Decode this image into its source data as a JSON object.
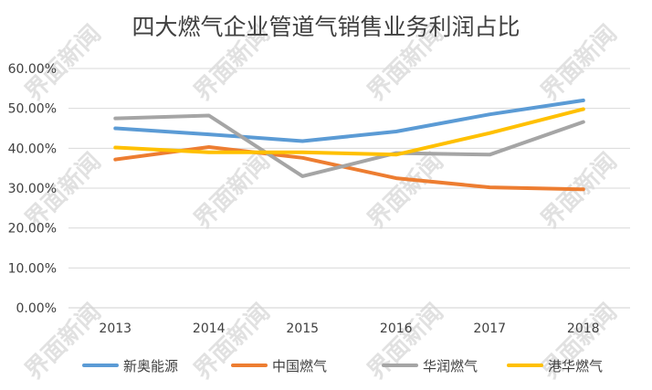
{
  "watermark_text": "界面新闻",
  "chart_data": {
    "type": "line",
    "title": "四大燃气企业管道气销售业务利润占比",
    "xlabel": "",
    "ylabel": "",
    "categories": [
      "2013",
      "2014",
      "2015",
      "2016",
      "2017",
      "2018"
    ],
    "ylim": [
      0,
      60
    ],
    "yticks": [
      "0.00%",
      "10.00%",
      "20.00%",
      "30.00%",
      "40.00%",
      "50.00%",
      "60.00%"
    ],
    "grid": true,
    "legend_position": "bottom",
    "series": [
      {
        "name": "新奥能源",
        "color": "#5B9BD5",
        "values": [
          45.0,
          43.5,
          41.8,
          44.2,
          48.5,
          52.0
        ]
      },
      {
        "name": "中国燃气",
        "color": "#ED7D31",
        "values": [
          37.2,
          40.3,
          37.6,
          32.5,
          30.2,
          29.7
        ]
      },
      {
        "name": "华润燃气",
        "color": "#A5A5A5",
        "values": [
          47.5,
          48.2,
          33.0,
          38.8,
          38.4,
          46.6
        ]
      },
      {
        "name": "港华燃气",
        "color": "#FFC000",
        "values": [
          40.2,
          39.0,
          39.0,
          38.4,
          43.8,
          49.8
        ]
      }
    ]
  }
}
